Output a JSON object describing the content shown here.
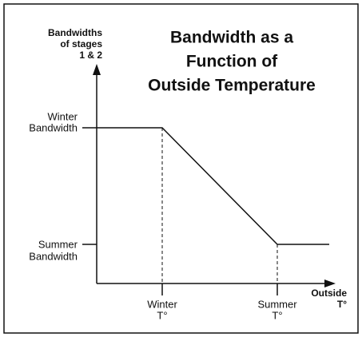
{
  "title": [
    "Bandwidth as a",
    "Function of",
    "Outside Temperature"
  ],
  "y_axis_label": [
    "Bandwidths",
    "of stages",
    "1 & 2"
  ],
  "x_axis_label": [
    "Outside",
    "T°"
  ],
  "y_labels": [
    [
      "Winter",
      "Bandwidth"
    ],
    [
      "Summer",
      "Bandwidth"
    ]
  ],
  "x_labels": [
    [
      "Winter",
      "T°"
    ],
    [
      "Summer",
      "T°"
    ]
  ]
}
